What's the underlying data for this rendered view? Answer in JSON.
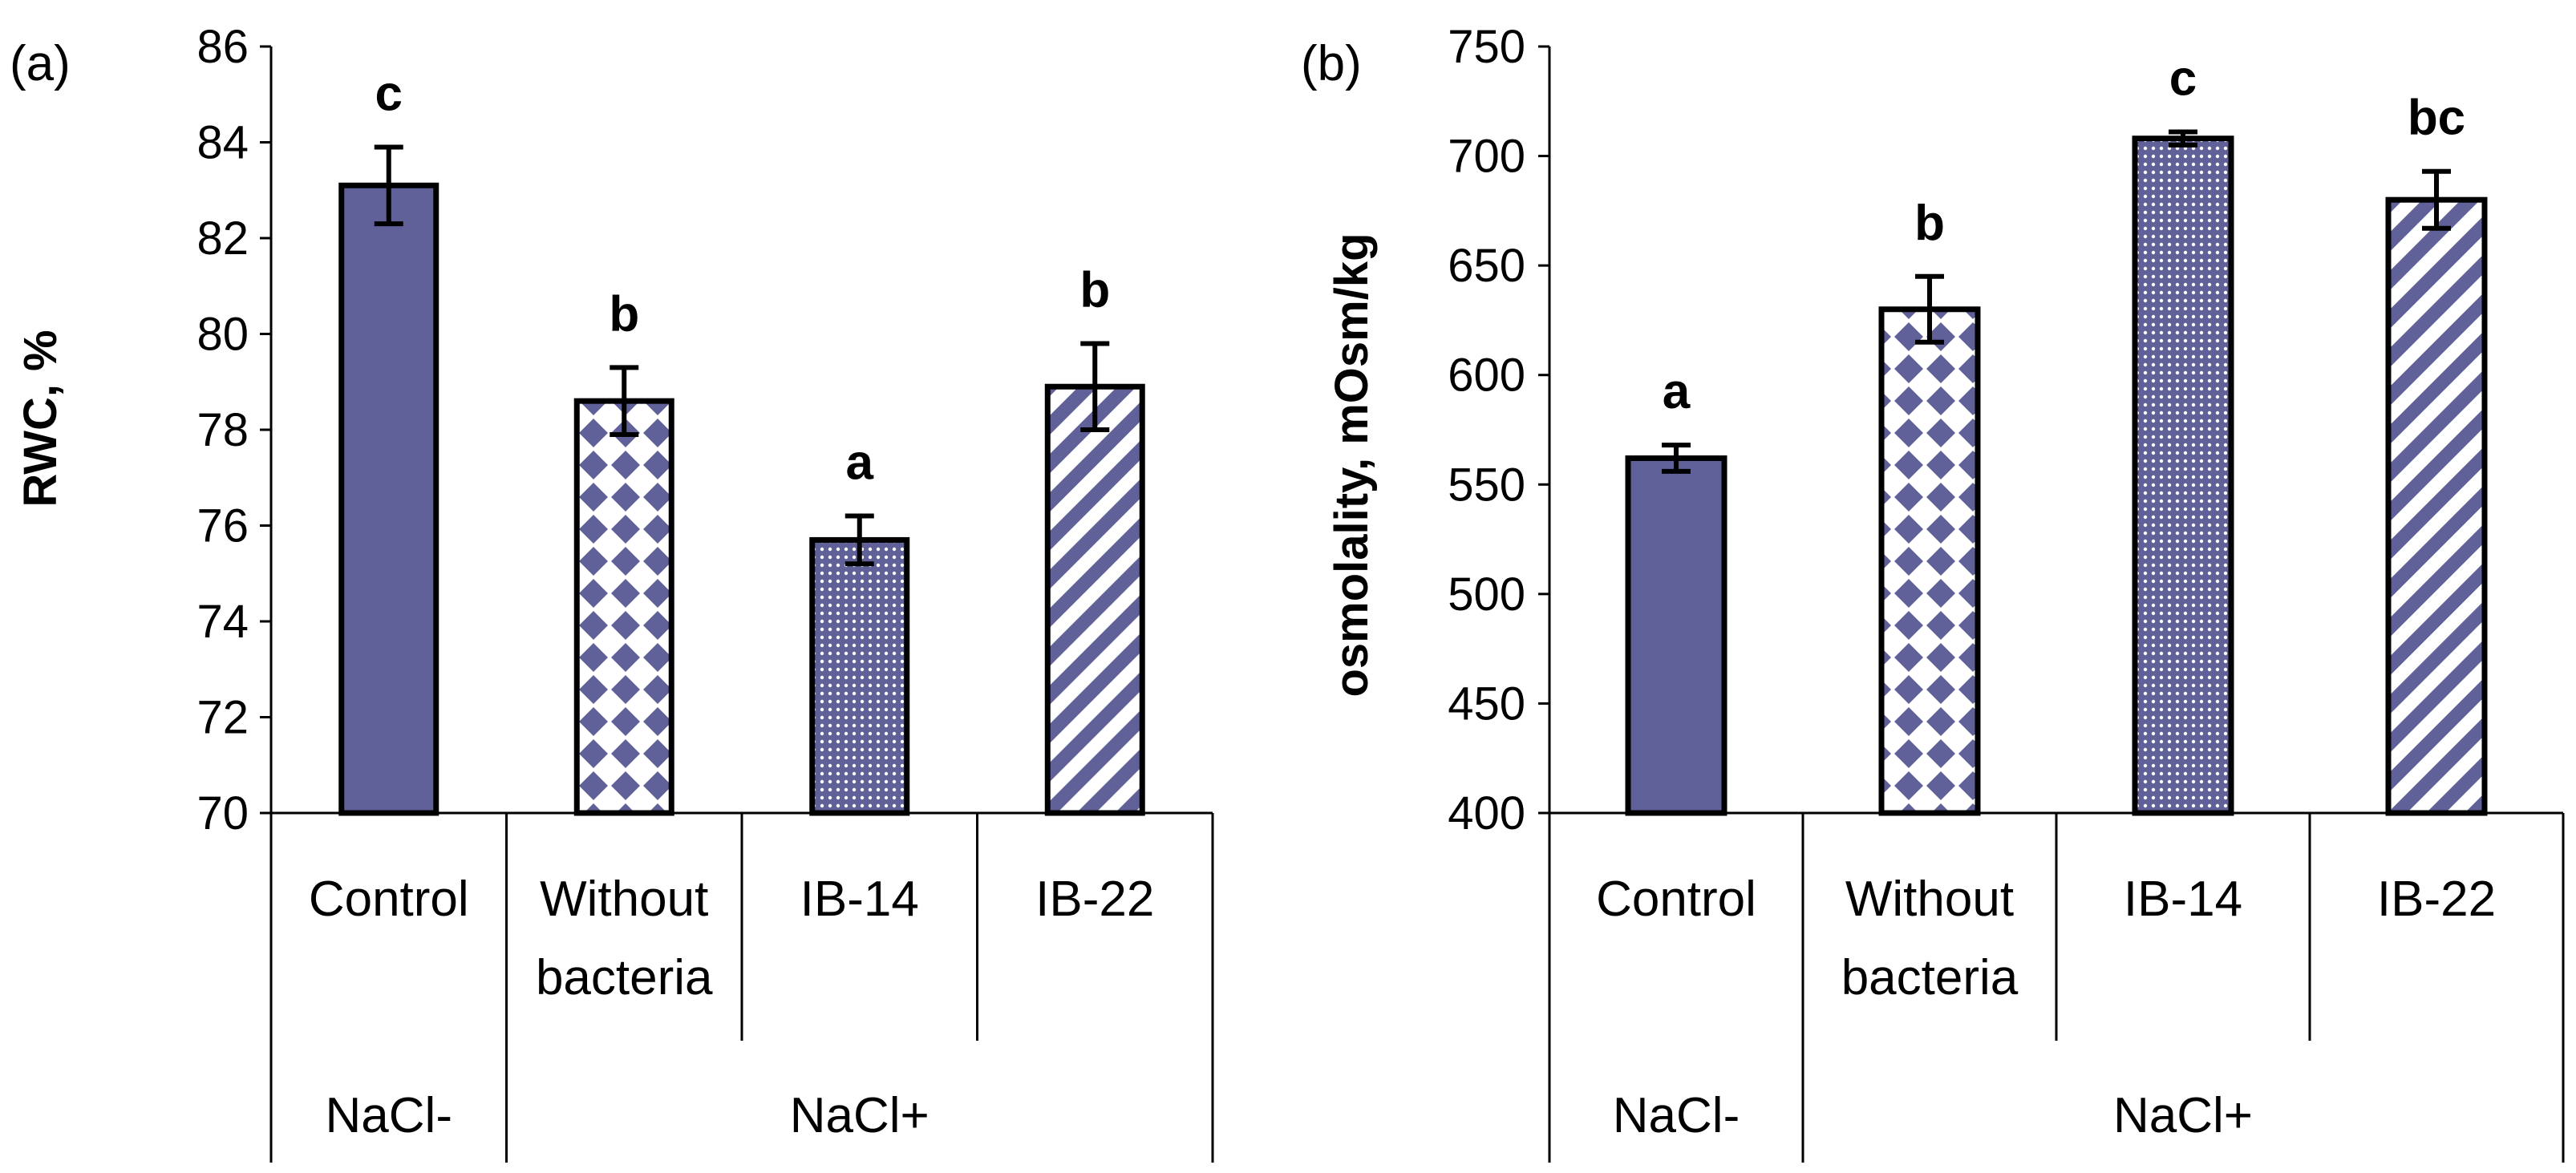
{
  "colors": {
    "bar_fill": "#616199",
    "bar_stroke": "#000000",
    "pattern_bg": "#ffffff"
  },
  "chart_data": [
    {
      "type": "bar",
      "panel_label": "(a)",
      "ylabel": "RWC, %",
      "ylim": [
        70,
        86
      ],
      "ytick_step": 2,
      "yticks": [
        "70",
        "72",
        "74",
        "76",
        "78",
        "80",
        "82",
        "84",
        "86"
      ],
      "categories": [
        "Control",
        "Without bacteria",
        "IB-14",
        "IB-22"
      ],
      "category_lines": [
        [
          "Control"
        ],
        [
          "Without",
          "bacteria"
        ],
        [
          "IB-14"
        ],
        [
          "IB-22"
        ]
      ],
      "patterns": [
        "solid",
        "diamonds",
        "dots",
        "stripes"
      ],
      "values": [
        83.1,
        78.6,
        75.7,
        78.9
      ],
      "errors": [
        0.8,
        0.7,
        0.5,
        0.9
      ],
      "significance": [
        "c",
        "b",
        "a",
        "b"
      ],
      "groups": [
        {
          "label": "NaCl-",
          "span": [
            0,
            0
          ]
        },
        {
          "label": "NaCl+",
          "span": [
            1,
            3
          ]
        }
      ]
    },
    {
      "type": "bar",
      "panel_label": "(b)",
      "ylabel": "osmolality, mOsm/kg",
      "ylim": [
        400,
        750
      ],
      "ytick_step": 50,
      "yticks": [
        "400",
        "450",
        "500",
        "550",
        "600",
        "650",
        "700",
        "750"
      ],
      "categories": [
        "Control",
        "Without bacteria",
        "IB-14",
        "IB-22"
      ],
      "category_lines": [
        [
          "Control"
        ],
        [
          "Without",
          "bacteria"
        ],
        [
          "IB-14"
        ],
        [
          "IB-22"
        ]
      ],
      "patterns": [
        "solid",
        "diamonds",
        "dots",
        "stripes"
      ],
      "values": [
        562,
        630,
        708,
        680
      ],
      "errors": [
        6,
        15,
        3,
        13
      ],
      "significance": [
        "a",
        "b",
        "c",
        "bc"
      ],
      "groups": [
        {
          "label": "NaCl-",
          "span": [
            0,
            0
          ]
        },
        {
          "label": "NaCl+",
          "span": [
            1,
            3
          ]
        }
      ]
    }
  ]
}
